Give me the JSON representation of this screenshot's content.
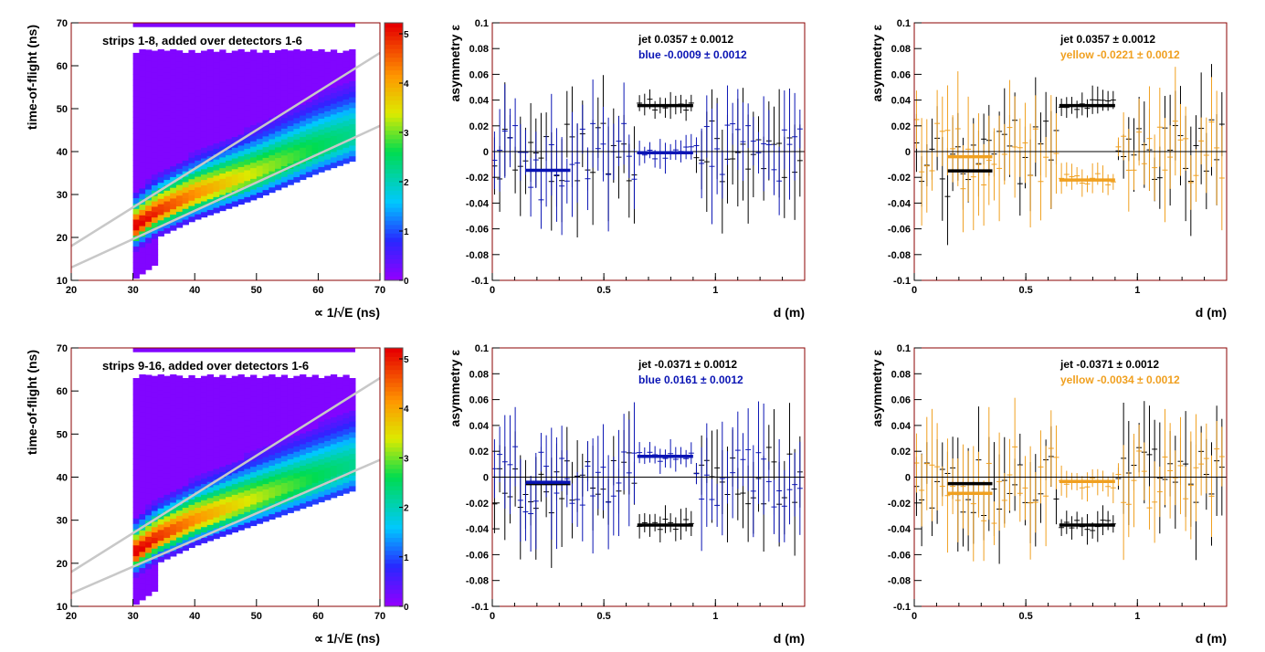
{
  "colors": {
    "frame": "#8b0000",
    "axis": "#000000",
    "jet": "#000000",
    "blue": "#0a14b4",
    "yellow": "#f0a020",
    "band": "#c8c8c8",
    "bg_hist": "#8f00ff"
  },
  "chart_data": [
    {
      "id": "tof-top",
      "type": "heatmap",
      "title": "strips 1-8, added over detectors 1-6",
      "xlabel": "∝ 1/√E (ns)",
      "ylabel": "time-of-flight (ns)",
      "xlim": [
        20,
        70
      ],
      "ylim": [
        10,
        70
      ],
      "xticks": [
        "20",
        "30",
        "40",
        "50",
        "60",
        "70"
      ],
      "yticks": [
        "10",
        "20",
        "30",
        "40",
        "50",
        "60",
        "70"
      ],
      "palette_ticks": [
        "5",
        "4",
        "3",
        "2",
        "1",
        "0"
      ],
      "band_lines": [
        {
          "x": [
            20,
            70
          ],
          "y": [
            18,
            63
          ]
        },
        {
          "x": [
            20,
            70
          ],
          "y": [
            13,
            46
          ]
        }
      ],
      "ridge": {
        "x_start": 30,
        "x_end": 66,
        "center": [
          [
            31,
            23
          ],
          [
            34,
            26
          ],
          [
            40,
            30
          ],
          [
            50,
            35
          ],
          [
            60,
            41
          ],
          [
            66,
            44
          ]
        ]
      }
    },
    {
      "id": "asym-top-blue",
      "type": "scatter",
      "xlabel": "d (m)",
      "ylabel": "asymmetry ε",
      "xlim": [
        0,
        1.4
      ],
      "ylim": [
        -0.1,
        0.1
      ],
      "xticks": [
        "0",
        "0.5",
        "1"
      ],
      "yticks": [
        "0.1",
        "0.08",
        "0.06",
        "0.04",
        "0.02",
        "0",
        "-0.02",
        "-0.04",
        "-0.06",
        "-0.08",
        "-0.1"
      ],
      "legend": [
        {
          "label": "jet  0.0357",
          "pm": "±",
          "err": "0.0012",
          "color": "jet"
        },
        {
          "label": "blue -0.0009",
          "pm": "±",
          "err": "0.0012",
          "color": "blue"
        }
      ],
      "fits": [
        {
          "name": "jet",
          "x": [
            0.65,
            0.9
          ],
          "y": 0.0357
        },
        {
          "name": "blue",
          "x": [
            0.15,
            0.35
          ],
          "y": -0.0145
        },
        {
          "name": "blue",
          "x": [
            0.65,
            0.9
          ],
          "y": -0.0009
        }
      ],
      "series": [
        {
          "name": "jet",
          "seed": 11,
          "color": "jet"
        },
        {
          "name": "blue",
          "seed": 23,
          "color": "blue"
        }
      ]
    },
    {
      "id": "asym-top-yellow",
      "type": "scatter",
      "xlabel": "d (m)",
      "ylabel": "asymmetry ε",
      "xlim": [
        0,
        1.4
      ],
      "ylim": [
        -0.1,
        0.1
      ],
      "xticks": [
        "0",
        "0.5",
        "1"
      ],
      "yticks": [
        "0.1",
        "0.08",
        "0.06",
        "0.04",
        "0.02",
        "0",
        "-0.02",
        "-0.04",
        "-0.06",
        "-0.08",
        "-0.1"
      ],
      "legend": [
        {
          "label": "jet  0.0357",
          "pm": "±",
          "err": "0.0012",
          "color": "jet"
        },
        {
          "label": "yellow -0.0221",
          "pm": "±",
          "err": "0.0012",
          "color": "yellow"
        }
      ],
      "fits": [
        {
          "name": "jet",
          "x": [
            0.65,
            0.9
          ],
          "y": 0.0357
        },
        {
          "name": "jet",
          "x": [
            0.15,
            0.35
          ],
          "y": -0.015
        },
        {
          "name": "yellow",
          "x": [
            0.15,
            0.35
          ],
          "y": -0.004
        },
        {
          "name": "yellow",
          "x": [
            0.65,
            0.9
          ],
          "y": -0.0221
        }
      ],
      "series": [
        {
          "name": "jet",
          "seed": 37,
          "color": "jet"
        },
        {
          "name": "yellow",
          "seed": 41,
          "color": "yellow"
        }
      ]
    },
    {
      "id": "tof-bottom",
      "type": "heatmap",
      "title": "strips 9-16, added over detectors 1-6",
      "xlabel": "∝ 1/√E (ns)",
      "ylabel": "time-of-flight (ns)",
      "xlim": [
        20,
        70
      ],
      "ylim": [
        10,
        70
      ],
      "xticks": [
        "20",
        "30",
        "40",
        "50",
        "60",
        "70"
      ],
      "yticks": [
        "10",
        "20",
        "30",
        "40",
        "50",
        "60",
        "70"
      ],
      "palette_ticks": [
        "5",
        "4",
        "3",
        "2",
        "1",
        "0"
      ],
      "band_lines": [
        {
          "x": [
            20,
            70
          ],
          "y": [
            18,
            63
          ]
        },
        {
          "x": [
            20,
            70
          ],
          "y": [
            13,
            44
          ]
        }
      ],
      "ridge": {
        "x_start": 30,
        "x_end": 66,
        "center": [
          [
            31,
            23
          ],
          [
            34,
            26
          ],
          [
            40,
            30
          ],
          [
            50,
            35
          ],
          [
            60,
            40
          ],
          [
            66,
            43
          ]
        ]
      }
    },
    {
      "id": "asym-bottom-blue",
      "type": "scatter",
      "xlabel": "d (m)",
      "ylabel": "asymmetry ε",
      "xlim": [
        0,
        1.4
      ],
      "ylim": [
        -0.1,
        0.1
      ],
      "xticks": [
        "0",
        "0.5",
        "1"
      ],
      "yticks": [
        "0.1",
        "0.08",
        "0.06",
        "0.04",
        "0.02",
        "0",
        "-0.02",
        "-0.04",
        "-0.06",
        "-0.08",
        "-0.1"
      ],
      "legend": [
        {
          "label": "jet -0.0371",
          "pm": "±",
          "err": "0.0012",
          "color": "jet"
        },
        {
          "label": "blue  0.0161",
          "pm": "±",
          "err": "0.0012",
          "color": "blue"
        }
      ],
      "fits": [
        {
          "name": "jet",
          "x": [
            0.65,
            0.9
          ],
          "y": -0.0371
        },
        {
          "name": "jet",
          "x": [
            0.15,
            0.35
          ],
          "y": -0.005
        },
        {
          "name": "blue",
          "x": [
            0.15,
            0.35
          ],
          "y": -0.004
        },
        {
          "name": "blue",
          "x": [
            0.65,
            0.9
          ],
          "y": 0.0161
        }
      ],
      "series": [
        {
          "name": "jet",
          "seed": 53,
          "color": "jet"
        },
        {
          "name": "blue",
          "seed": 59,
          "color": "blue"
        }
      ]
    },
    {
      "id": "asym-bottom-yellow",
      "type": "scatter",
      "xlabel": "d (m)",
      "ylabel": "asymmetry ε",
      "xlim": [
        0,
        1.4
      ],
      "ylim": [
        -0.1,
        0.1
      ],
      "xticks": [
        "0",
        "0.5",
        "1"
      ],
      "yticks": [
        "0.1",
        "0.08",
        "0.06",
        "0.04",
        "0.02",
        "0",
        "-0.02",
        "-0.04",
        "-0.06",
        "-0.08",
        "-0.1"
      ],
      "legend": [
        {
          "label": "jet -0.0371",
          "pm": "±",
          "err": "0.0012",
          "color": "jet"
        },
        {
          "label": "yellow -0.0034",
          "pm": "±",
          "err": "0.0012",
          "color": "yellow"
        }
      ],
      "fits": [
        {
          "name": "jet",
          "x": [
            0.65,
            0.9
          ],
          "y": -0.0371
        },
        {
          "name": "jet",
          "x": [
            0.15,
            0.35
          ],
          "y": -0.005
        },
        {
          "name": "yellow",
          "x": [
            0.15,
            0.35
          ],
          "y": -0.0125
        },
        {
          "name": "yellow",
          "x": [
            0.65,
            0.9
          ],
          "y": -0.0034
        }
      ],
      "series": [
        {
          "name": "jet",
          "seed": 67,
          "color": "jet"
        },
        {
          "name": "yellow",
          "seed": 71,
          "color": "yellow"
        }
      ]
    }
  ]
}
